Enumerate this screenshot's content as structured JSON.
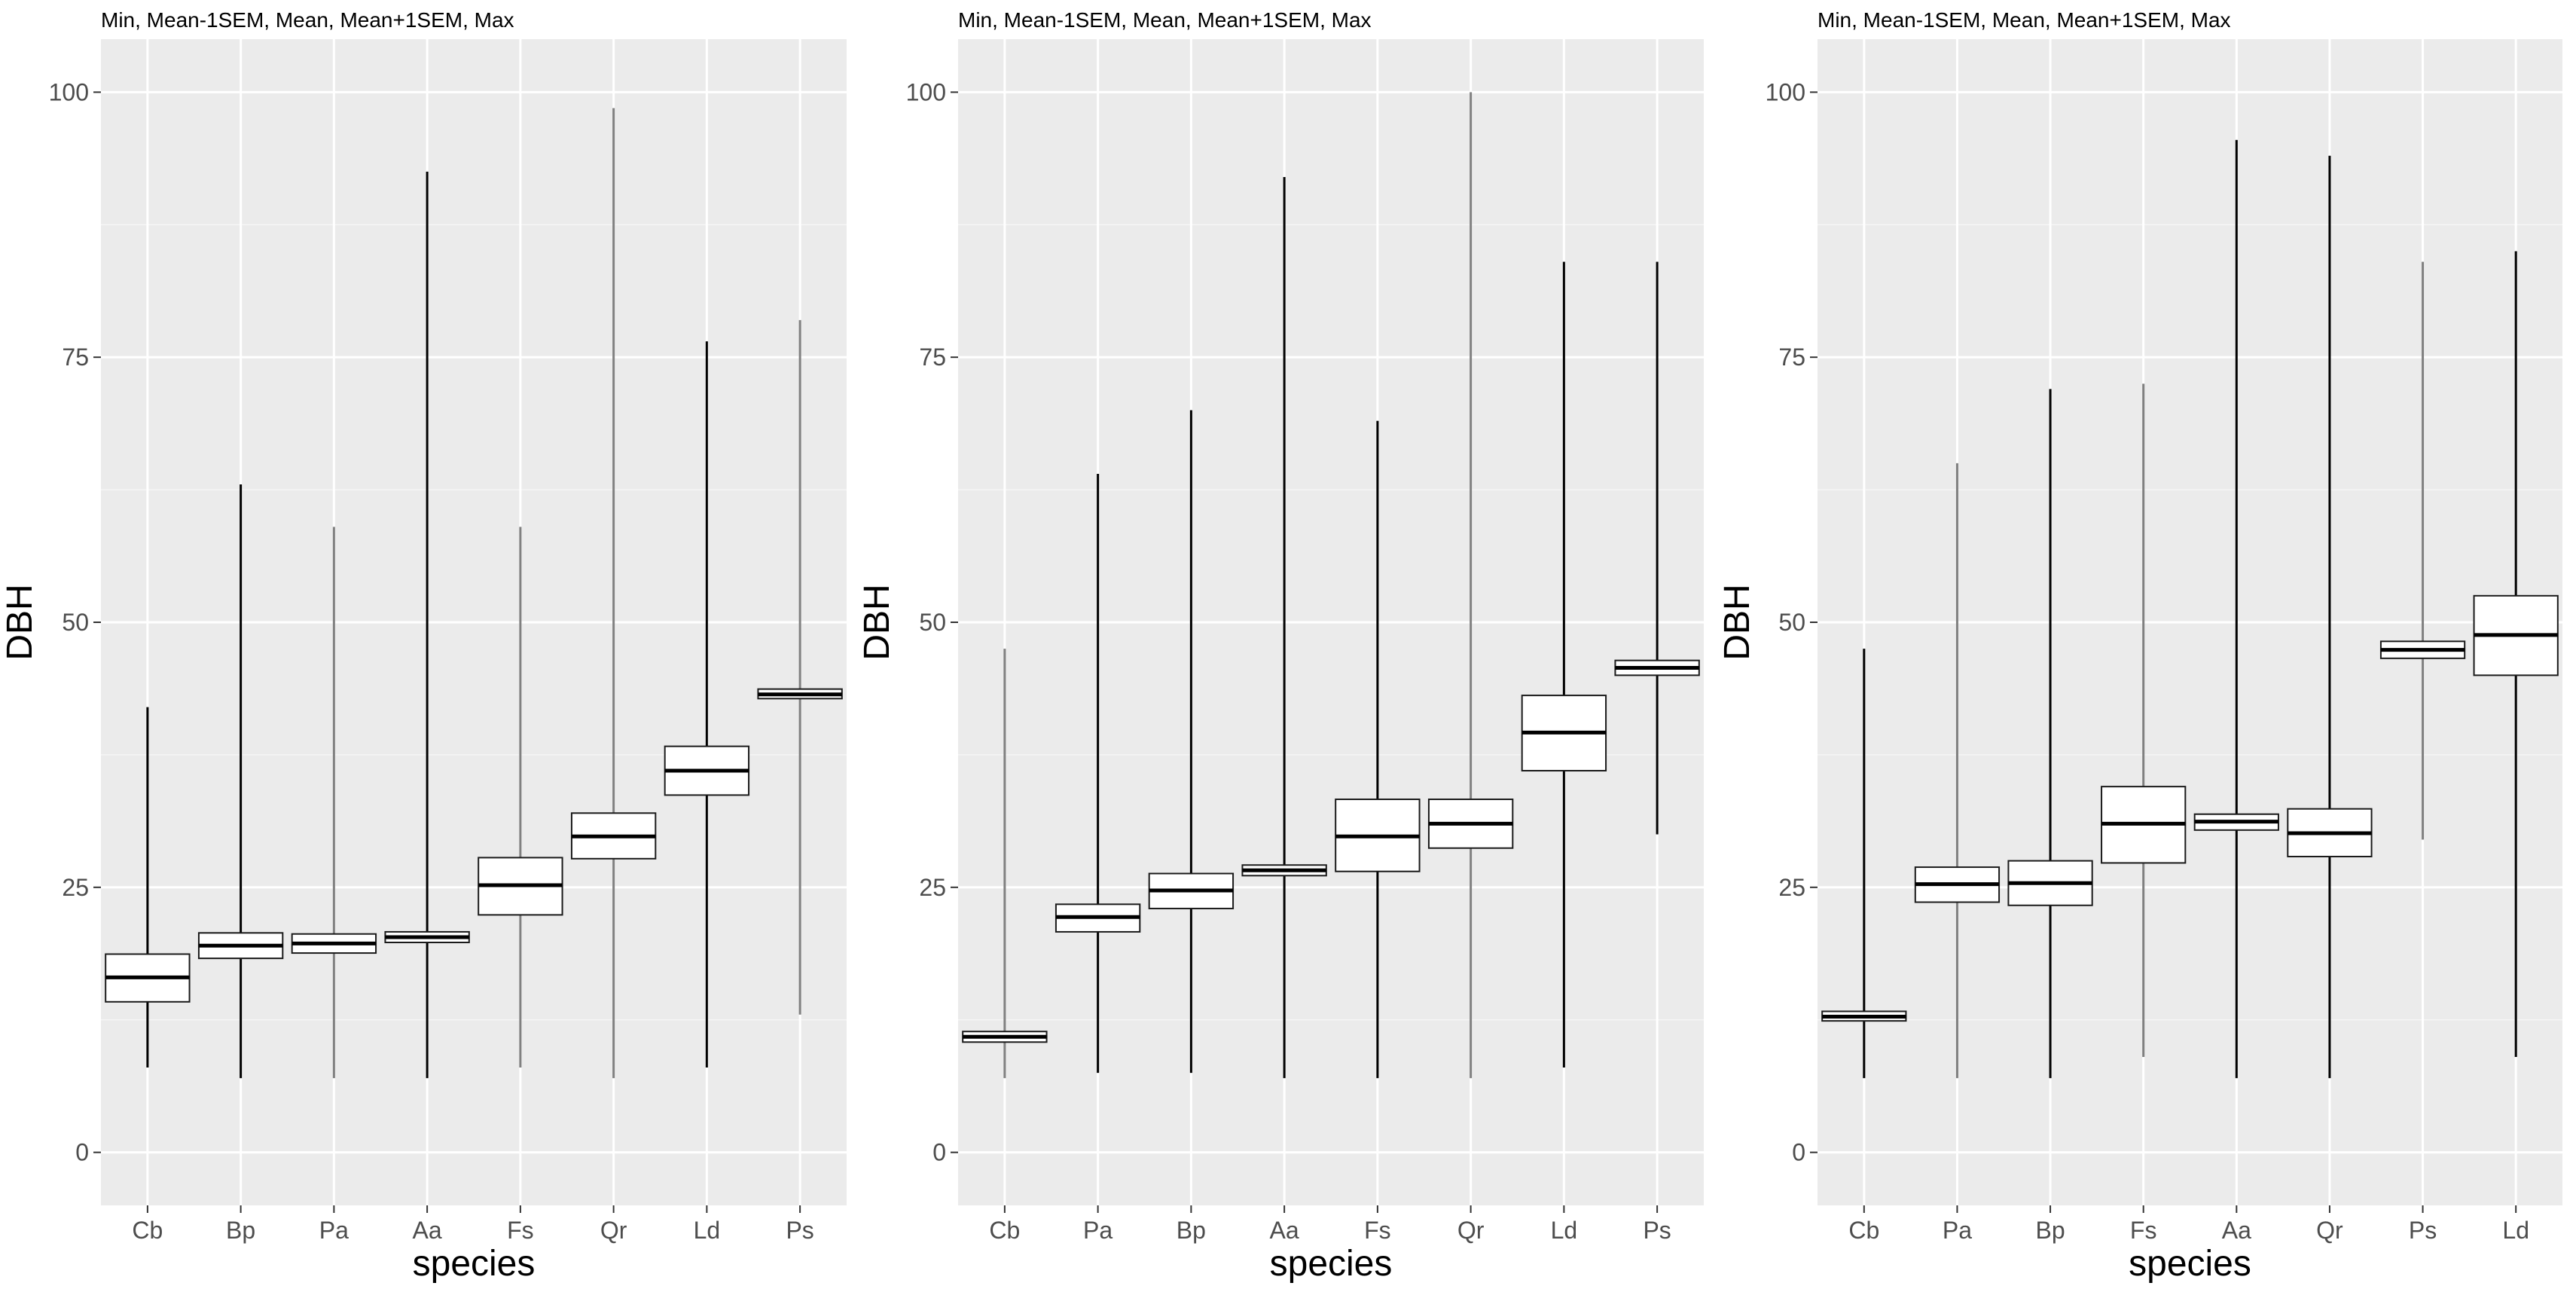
{
  "figure": {
    "description_style": "ggplot2 crossbar plots of DBH by species, three panels"
  },
  "chart_data": [
    {
      "type": "crossbar",
      "title": "Min, Mean-1SEM, Mean, Mean+1SEM, Max",
      "xlabel": "species",
      "ylabel": "DBH",
      "ylim": [
        -5,
        105
      ],
      "yticks": [
        0,
        25,
        50,
        75,
        100
      ],
      "categories": [
        "Cb",
        "Bp",
        "Pa",
        "Aa",
        "Fs",
        "Qr",
        "Ld",
        "Ps"
      ],
      "whisker_colors": [
        "#000000",
        "#000000",
        "#808080",
        "#000000",
        "#808080",
        "#808080",
        "#000000",
        "#808080"
      ],
      "min": [
        8,
        7,
        7,
        7,
        8,
        7,
        8,
        13
      ],
      "lower": [
        14.2,
        18.3,
        18.8,
        19.8,
        22.4,
        27.7,
        33.7,
        42.8
      ],
      "mean": [
        16.5,
        19.5,
        19.7,
        20.3,
        25.2,
        29.8,
        36.0,
        43.2
      ],
      "upper": [
        18.7,
        20.7,
        20.6,
        20.8,
        27.8,
        32.0,
        38.3,
        43.7
      ],
      "max": [
        42,
        63,
        59,
        92.5,
        59,
        98.5,
        76.5,
        78.5
      ]
    },
    {
      "type": "crossbar",
      "title": "Min, Mean-1SEM, Mean, Mean+1SEM, Max",
      "xlabel": "species",
      "ylabel": "DBH",
      "ylim": [
        -5,
        105
      ],
      "yticks": [
        0,
        25,
        50,
        75,
        100
      ],
      "categories": [
        "Cb",
        "Pa",
        "Bp",
        "Aa",
        "Fs",
        "Qr",
        "Ld",
        "Ps"
      ],
      "whisker_colors": [
        "#808080",
        "#000000",
        "#000000",
        "#000000",
        "#000000",
        "#808080",
        "#000000",
        "#000000"
      ],
      "min": [
        7,
        7.5,
        7.5,
        7,
        7,
        7,
        8,
        30
      ],
      "lower": [
        10.4,
        20.8,
        23.0,
        26.1,
        26.5,
        28.7,
        36.0,
        45.0
      ],
      "mean": [
        10.9,
        22.2,
        24.7,
        26.6,
        29.8,
        31.0,
        39.6,
        45.7
      ],
      "upper": [
        11.4,
        23.4,
        26.3,
        27.1,
        33.3,
        33.3,
        43.1,
        46.4
      ],
      "max": [
        47.5,
        64,
        70,
        92,
        69,
        100,
        84,
        84
      ]
    },
    {
      "type": "crossbar",
      "title": "Min, Mean-1SEM, Mean, Mean+1SEM, Max",
      "xlabel": "species",
      "ylabel": "DBH",
      "ylim": [
        -5,
        105
      ],
      "yticks": [
        0,
        25,
        50,
        75,
        100
      ],
      "categories": [
        "Cb",
        "Pa",
        "Bp",
        "Fs",
        "Aa",
        "Qr",
        "Ps",
        "Ld"
      ],
      "whisker_colors": [
        "#000000",
        "#808080",
        "#000000",
        "#808080",
        "#000000",
        "#000000",
        "#808080",
        "#000000"
      ],
      "min": [
        7,
        7,
        7,
        9,
        7,
        7,
        29.5,
        9
      ],
      "lower": [
        12.4,
        23.6,
        23.3,
        27.3,
        30.4,
        27.9,
        46.6,
        45.0
      ],
      "mean": [
        12.8,
        25.3,
        25.4,
        31.0,
        31.2,
        30.1,
        47.4,
        48.8
      ],
      "upper": [
        13.3,
        26.9,
        27.5,
        34.5,
        31.9,
        32.4,
        48.2,
        52.5
      ],
      "max": [
        47.5,
        65,
        72,
        72.5,
        95.5,
        94,
        84,
        85
      ]
    }
  ]
}
